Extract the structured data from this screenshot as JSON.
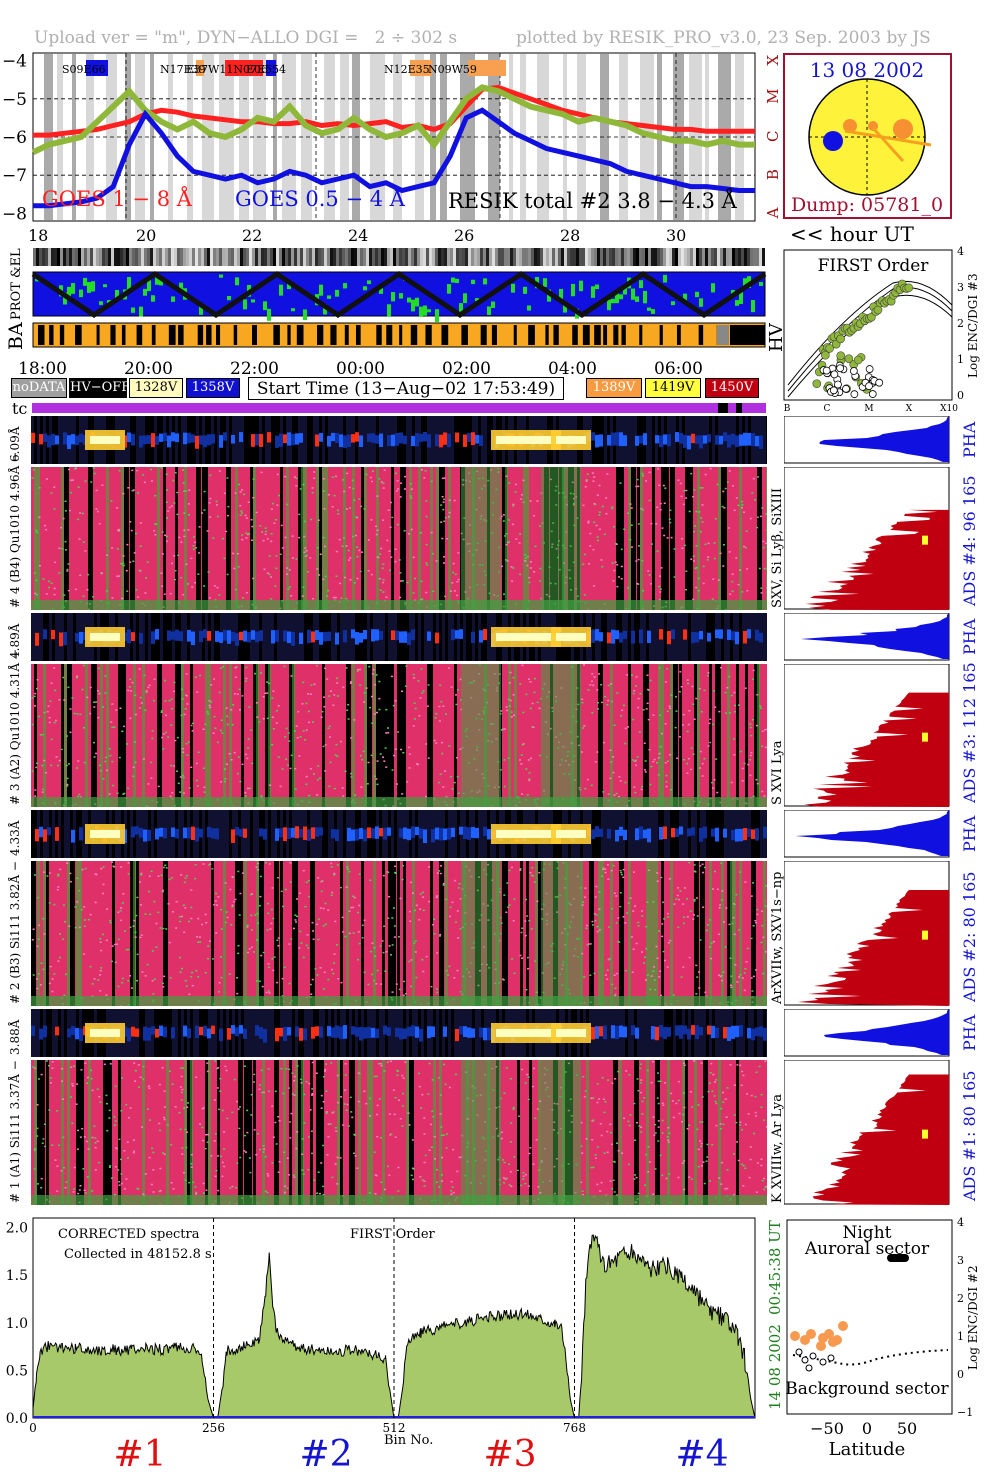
{
  "header": {
    "left": "Upload ver = \"m\", DYN−ALLO DGI =   2 ÷ 302 s",
    "right": "plotted by RESIK_PRO_v3.0, 23 Sep. 2003 by JS"
  },
  "goes": {
    "yticks": [
      "−4",
      "−5",
      "−6",
      "−7",
      "−8"
    ],
    "classes": [
      "X",
      "M",
      "C",
      "B",
      "A"
    ],
    "regions": [
      "S09E66",
      "N17E39",
      "E37W11N07E55",
      "E06",
      "54",
      "N12E35",
      "N09W59"
    ],
    "label_red": "GOES 1 − 8 Å",
    "label_blue": "GOES 0.5 − 4 Å",
    "label_black": "RESIK total #2  3.8 − 4.3 Å",
    "hour_ticks": [
      "18",
      "20",
      "22",
      "24",
      "26",
      "28",
      "30"
    ],
    "hour_label": "<< hour UT",
    "red": [
      -5.95,
      -5.95,
      -5.9,
      -5.85,
      -5.8,
      -5.7,
      -5.6,
      -5.4,
      -5.3,
      -5.35,
      -5.45,
      -5.5,
      -5.55,
      -5.6,
      -5.6,
      -5.65,
      -5.65,
      -5.6,
      -5.7,
      -5.65,
      -5.7,
      -5.65,
      -5.6,
      -5.75,
      -5.7,
      -5.8,
      -5.65,
      -5.2,
      -4.75,
      -4.7,
      -4.85,
      -5.0,
      -5.15,
      -5.3,
      -5.4,
      -5.5,
      -5.6,
      -5.65,
      -5.7,
      -5.75,
      -5.8,
      -5.8,
      -5.85,
      -5.85,
      -5.85,
      -5.85
    ],
    "blue": [
      -7.8,
      -7.8,
      -7.75,
      -7.7,
      -7.6,
      -7.3,
      -6.2,
      -5.4,
      -5.9,
      -6.5,
      -6.9,
      -7.0,
      -7.1,
      -7.0,
      -7.2,
      -7.1,
      -6.9,
      -7.0,
      -7.2,
      -7.1,
      -7.0,
      -7.3,
      -7.2,
      -7.4,
      -7.3,
      -7.2,
      -6.5,
      -5.5,
      -5.3,
      -5.6,
      -5.9,
      -6.1,
      -6.3,
      -6.4,
      -6.5,
      -6.6,
      -6.7,
      -6.9,
      -7.0,
      -7.1,
      -7.2,
      -7.3,
      -7.3,
      -7.35,
      -7.4,
      -7.4
    ],
    "green": [
      -6.4,
      -6.2,
      -6.1,
      -6.0,
      -5.6,
      -5.2,
      -4.8,
      -5.3,
      -5.6,
      -5.8,
      -5.6,
      -5.9,
      -6.0,
      -5.8,
      -5.5,
      -5.6,
      -5.2,
      -5.7,
      -5.9,
      -5.8,
      -5.5,
      -5.8,
      -6.0,
      -5.9,
      -5.7,
      -6.2,
      -5.6,
      -5.0,
      -4.7,
      -4.8,
      -5.0,
      -5.2,
      -5.3,
      -5.4,
      -5.6,
      -5.5,
      -5.6,
      -5.7,
      -5.9,
      -6.0,
      -6.1,
      -6.1,
      -6.2,
      -6.1,
      -6.2,
      -6.2
    ]
  },
  "sun": {
    "date": "13 08 2002",
    "dump": "Dump: 05781_0"
  },
  "orbit": {
    "left_label": "PROT &EL",
    "ba_label": "BA",
    "hv_label": "HV",
    "time_ticks": [
      "18:00",
      "20:00",
      "22:00",
      "00:00",
      "02:00",
      "04:00",
      "06:00"
    ]
  },
  "legend": {
    "nodata": "noDATA",
    "hvoff": "HV−OFF",
    "v1328": "1328V",
    "v1358": "1358V",
    "start": "Start Time (13−Aug−02 17:53:49)",
    "v1389": "1389V",
    "v1419": "1419V",
    "v1450": "1450V",
    "tc": "tc"
  },
  "first_order": {
    "title": "FIRST Order",
    "ylabel": "Log ENC/DGI #3",
    "xticks": [
      "B",
      "C",
      "M",
      "X",
      "X10"
    ],
    "yticks": [
      "4",
      "3",
      "2",
      "1",
      "0"
    ]
  },
  "channels": [
    {
      "pha_label": "6.09Å",
      "main_label": "# 4 (B4) Qu1010  4.96Å −",
      "ion_label": "SXV, Si Lyβ, SiXIII",
      "ads_label": "ADS #4:    96 165",
      "pha": "PHA"
    },
    {
      "pha_label": "4.89Å",
      "main_label": "# 3 (A2) Qu1010  4.31Å −",
      "ion_label": "S XVI Lya",
      "ads_label": "ADS #3:   112 165",
      "pha": "PHA"
    },
    {
      "pha_label": "4.33Å",
      "main_label": "# 2 (B3) Si111  3.82Å −",
      "ion_label": "ArXVIIw, SXV1s−np",
      "ads_label": "ADS #2:    80 165",
      "pha": "PHA"
    },
    {
      "pha_label": "3.88Å",
      "main_label": "# 1 (A1) Si111  3.37Å −",
      "ion_label": "K XVIIIw, Ar Lya",
      "ads_label": "ADS #1:    80 165",
      "pha": "PHA"
    }
  ],
  "chart_data": [
    {
      "type": "area",
      "title": "FIRST Order",
      "annotation_1": "CORRECTED spectra",
      "annotation_2": "Collected in 48152.8 s",
      "xlabel": "Bin No.",
      "ylim": [
        0,
        2.1
      ],
      "xlim": [
        0,
        1024
      ],
      "yticks": [
        "2.0",
        "1.5",
        "1.0",
        "0.5",
        "0.0"
      ],
      "xticks": [
        "0",
        "256",
        "512",
        "768"
      ],
      "section_labels": [
        "#1",
        "#2",
        "#3",
        "#4"
      ],
      "right_time": "00:45:38 UT",
      "right_date": "14 08 2002",
      "series": [
        {
          "x": [
            0,
            5,
            10,
            20,
            40,
            60,
            80,
            100,
            120,
            140,
            160,
            180,
            200,
            230,
            240,
            248,
            256
          ],
          "values": [
            0.1,
            0.45,
            0.7,
            0.75,
            0.74,
            0.73,
            0.72,
            0.71,
            0.72,
            0.71,
            0.73,
            0.72,
            0.74,
            0.72,
            0.6,
            0.2,
            0.0
          ]
        },
        {
          "x": [
            262,
            268,
            275,
            300,
            320,
            330,
            335,
            340,
            345,
            355,
            370,
            400,
            430,
            450,
            480,
            500,
            506,
            512
          ],
          "values": [
            0.0,
            0.3,
            0.7,
            0.75,
            0.8,
            1.3,
            1.75,
            1.2,
            0.9,
            0.85,
            0.75,
            0.72,
            0.7,
            0.72,
            0.68,
            0.6,
            0.3,
            0.0
          ]
        },
        {
          "x": [
            518,
            524,
            530,
            550,
            580,
            610,
            640,
            670,
            700,
            720,
            740,
            750,
            756,
            762,
            768
          ],
          "values": [
            0.0,
            0.3,
            0.8,
            0.9,
            0.95,
            1.0,
            1.05,
            1.08,
            1.1,
            1.05,
            1.0,
            0.95,
            0.6,
            0.2,
            0.0
          ]
        },
        {
          "x": [
            774,
            778,
            784,
            790,
            800,
            805,
            820,
            840,
            860,
            880,
            900,
            920,
            940,
            960,
            980,
            1000,
            1010,
            1018,
            1024
          ],
          "values": [
            0.0,
            0.5,
            1.4,
            1.8,
            1.9,
            1.6,
            1.65,
            1.75,
            1.7,
            1.55,
            1.6,
            1.45,
            1.3,
            1.1,
            1.05,
            0.85,
            0.6,
            0.2,
            0.0
          ]
        }
      ]
    }
  ],
  "latitude": {
    "night": "Night",
    "auroral": "Auroral sector",
    "background": "Background sector",
    "xlabel": "Latitude",
    "ylabel": "Log ENC/DGI #2",
    "xticks": [
      "−50",
      "0",
      "50"
    ],
    "yticks": [
      "4",
      "3",
      "2",
      "1",
      "0",
      "−1"
    ]
  }
}
